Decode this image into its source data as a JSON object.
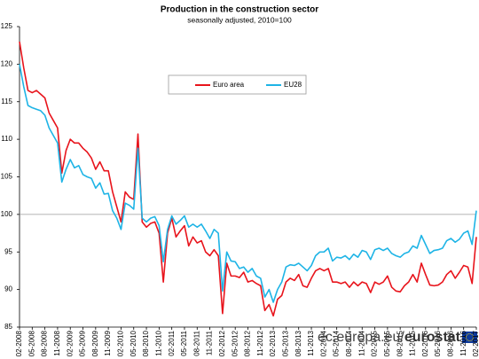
{
  "chart_data": {
    "type": "line",
    "title": "Production in the construction sector",
    "subtitle": "seasonally adjusted, 2010=100",
    "source_domain": "ec.europa.eu/",
    "source_brand": "eurostat",
    "categories": [
      "02-2008",
      null,
      null,
      "05-2008",
      null,
      null,
      "08-2008",
      null,
      null,
      "11-2008",
      null,
      null,
      "02-2009",
      null,
      null,
      "05-2009",
      null,
      null,
      "08-2009",
      null,
      null,
      "11-2009",
      null,
      null,
      "02-2010",
      null,
      null,
      "05-2010",
      null,
      null,
      "08-2010",
      null,
      null,
      "11-2010",
      null,
      null,
      "02-2011",
      null,
      null,
      "05-2011",
      null,
      null,
      "08-2011",
      null,
      null,
      "11-2011",
      null,
      null,
      "02-2012",
      null,
      null,
      "05-2012",
      null,
      null,
      "08-2012",
      null,
      null,
      "11-2012",
      null,
      null,
      "02-2013",
      null,
      null,
      "05-2013",
      null,
      null,
      "08-2013",
      null,
      null,
      "11-2013",
      null,
      null,
      "02-2014",
      null,
      null,
      "05-2014",
      null,
      null,
      "08-2014",
      null,
      null,
      "11-2014",
      null,
      null,
      "02-2015",
      null,
      null,
      "05-2015",
      null,
      null,
      "08-2015",
      null,
      null,
      "11-2015",
      null,
      null,
      "02-2016",
      null,
      null,
      "05-2016",
      null,
      null,
      "08-2016",
      null,
      null,
      "11-2016",
      null,
      null,
      "02-2017"
    ],
    "series": [
      {
        "name": "Euro area",
        "color": "#e8141c",
        "values": [
          123,
          119.5,
          116.5,
          116.2,
          116.5,
          116,
          115.5,
          113.5,
          112.5,
          111.5,
          105.5,
          108.5,
          110,
          109.5,
          109.5,
          108.8,
          108.3,
          107.5,
          106,
          107,
          105.8,
          105.8,
          103,
          101,
          99,
          103,
          102.3,
          102,
          110.7,
          99,
          98.3,
          98.8,
          99,
          97.5,
          91,
          97.5,
          99.5,
          97,
          97.8,
          98.5,
          95.8,
          97,
          96.2,
          96.5,
          95,
          94.5,
          95.3,
          94.5,
          86.8,
          93.5,
          91.8,
          91.8,
          91.6,
          92.3,
          91,
          91.2,
          90.8,
          90.5,
          87.2,
          88,
          86.5,
          88.7,
          89.2,
          91,
          91.5,
          91.2,
          92,
          90.5,
          90.3,
          91.5,
          92.5,
          92.8,
          92.5,
          92.8,
          91,
          91,
          90.8,
          91,
          90.3,
          91,
          90.5,
          91,
          90.8,
          89.6,
          91,
          90.7,
          91,
          91.8,
          90.3,
          89.8,
          89.7,
          90.5,
          91,
          92,
          91,
          93.5,
          92,
          90.6,
          90.5,
          90.6,
          91,
          92,
          92.5,
          91.5,
          92.3,
          93.2,
          93,
          90.8,
          97
        ]
      },
      {
        "name": "EU28",
        "color": "#1eb4e6",
        "values": [
          120,
          117,
          114.5,
          114.2,
          114,
          113.8,
          113.2,
          111.5,
          110.5,
          109.5,
          104.3,
          106,
          107.3,
          106.2,
          106.5,
          105.3,
          105,
          104.8,
          103.5,
          104.2,
          102.7,
          102.8,
          100.5,
          99.5,
          98,
          101.5,
          101.2,
          100.7,
          108.8,
          99.5,
          99,
          99.5,
          99.7,
          98.5,
          93.7,
          98,
          99.8,
          98.7,
          99.2,
          99.8,
          98.3,
          98.7,
          98.3,
          98.7,
          97.8,
          96.8,
          98,
          97.5,
          89.8,
          95,
          93.8,
          93.7,
          92.8,
          93,
          92.3,
          92.8,
          91.8,
          91.5,
          89,
          90,
          88.3,
          90,
          91,
          93,
          93.3,
          93.2,
          93.5,
          93,
          92.5,
          93.2,
          94.5,
          95,
          95,
          95.5,
          93.8,
          94.3,
          94.2,
          94.5,
          94,
          94.7,
          94.3,
          95.2,
          95,
          94,
          95.3,
          95.5,
          95.2,
          95.5,
          94.8,
          94.5,
          94.3,
          94.8,
          95,
          95.8,
          95.5,
          97.2,
          96,
          94.8,
          95.2,
          95.3,
          95.5,
          96.5,
          96.8,
          96.3,
          96.7,
          97.5,
          97.8,
          96,
          100.5
        ]
      }
    ],
    "ylim": [
      85,
      125
    ],
    "yticks": [
      85,
      90,
      95,
      100,
      105,
      110,
      115,
      120,
      125
    ],
    "reference_line": 100
  }
}
